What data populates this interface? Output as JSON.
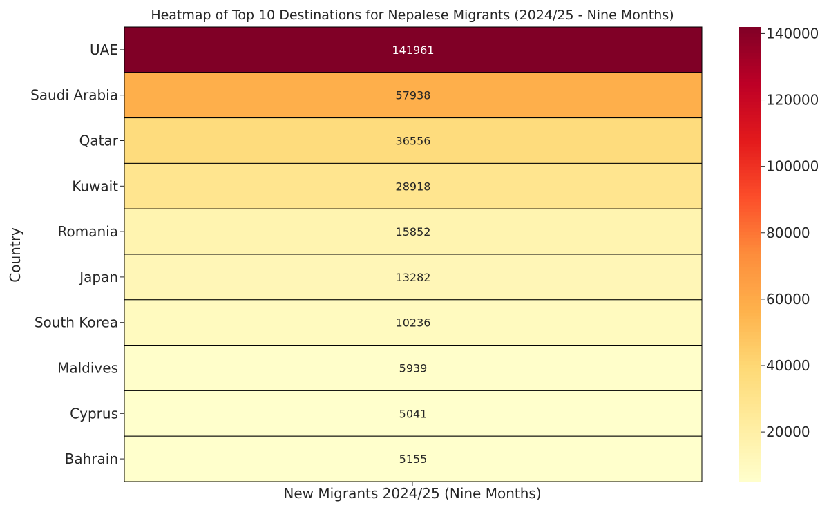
{
  "chart_data": {
    "type": "heatmap",
    "title": "Heatmap of Top 10 Destinations for Nepalese Migrants (2024/25 - Nine Months)",
    "xlabel": "New Migrants 2024/25 (Nine Months)",
    "ylabel": "Country",
    "columns": [
      ""
    ],
    "rows": [
      "UAE",
      "Saudi Arabia",
      "Qatar",
      "Kuwait",
      "Romania",
      "Japan",
      "South Korea",
      "Maldives",
      "Cyprus",
      "Bahrain"
    ],
    "values": [
      141961,
      57938,
      36556,
      28918,
      15852,
      13282,
      10236,
      5939,
      5041,
      5155
    ],
    "colorbar": {
      "colormap": "YlOrRd",
      "range": [
        5041,
        141961
      ],
      "ticks": [
        20000,
        40000,
        60000,
        80000,
        100000,
        120000,
        140000
      ],
      "tick_labels": [
        "20000",
        "40000",
        "60000",
        "80000",
        "100000",
        "120000",
        "140000"
      ]
    }
  }
}
